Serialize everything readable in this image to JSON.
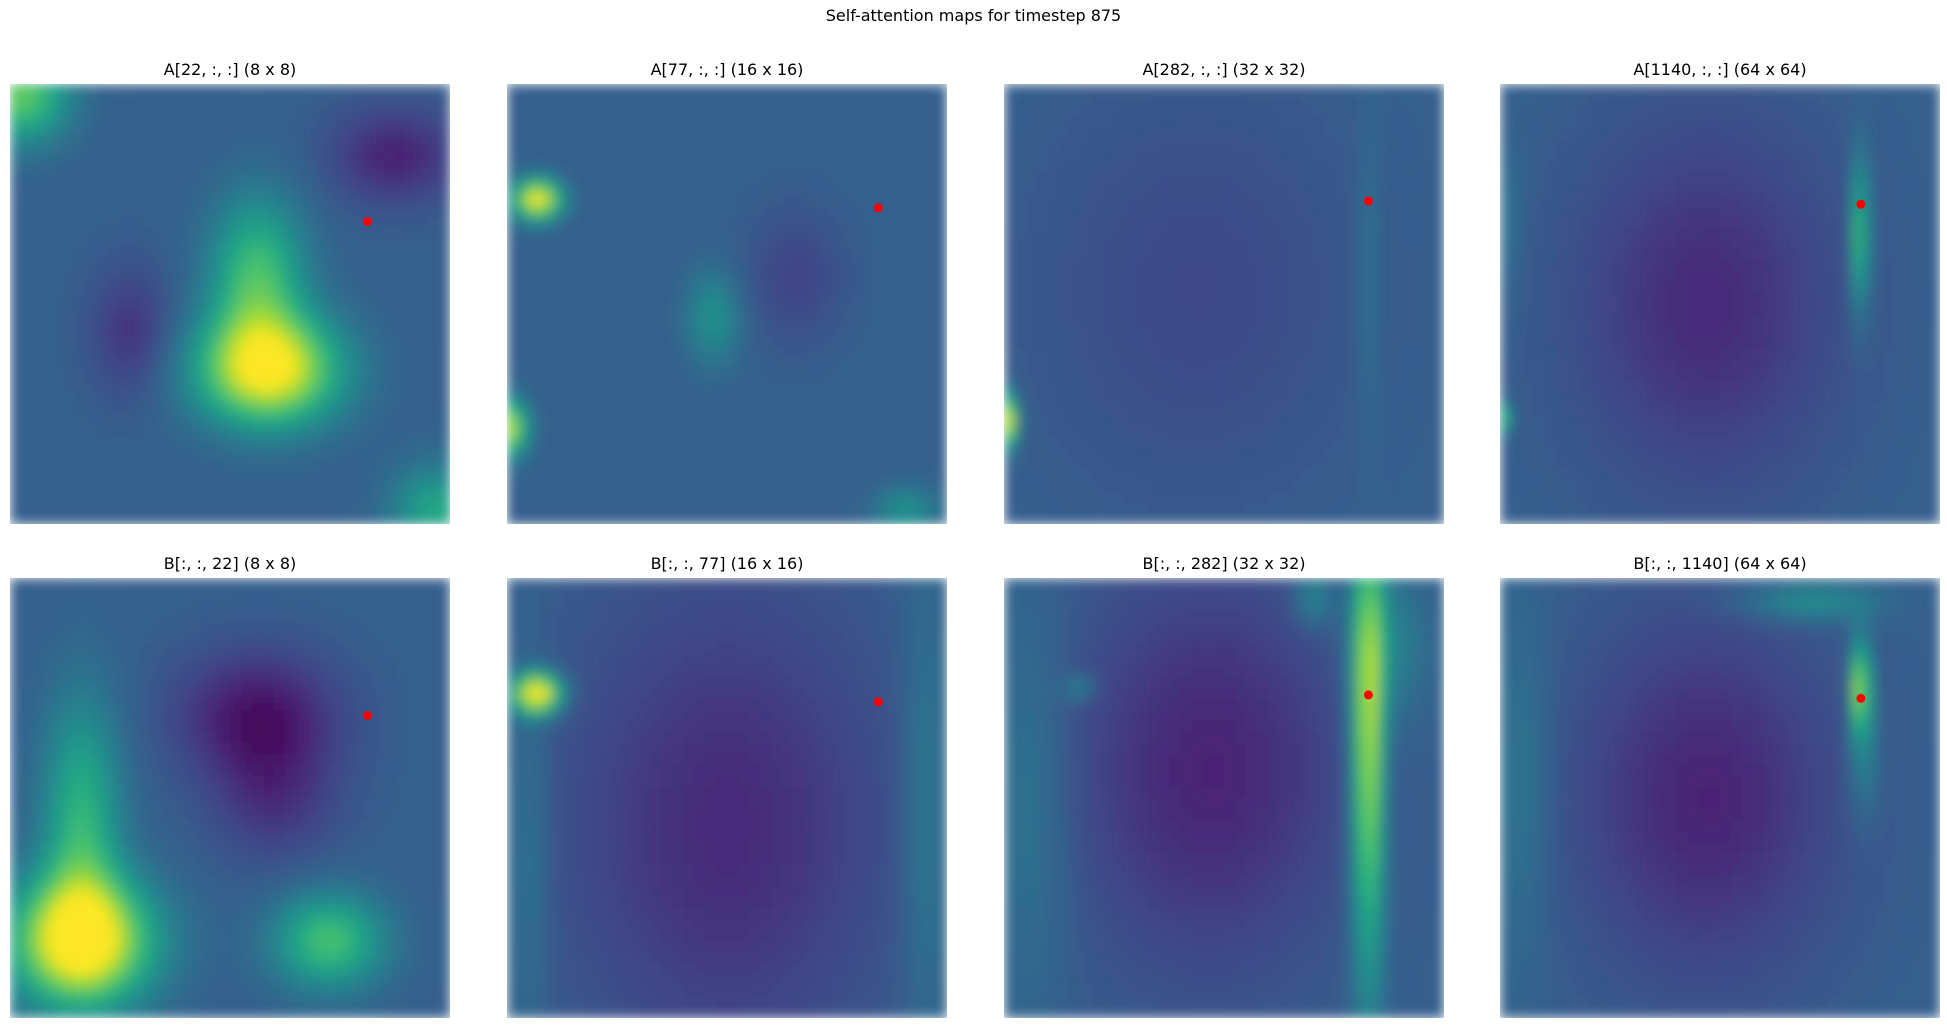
{
  "chart_data": {
    "type": "heatmap",
    "title": "Self-attention maps for timestep 875",
    "colormap": "viridis",
    "marker_color": "#ff0000",
    "panels": [
      {
        "row": 1,
        "col": 1,
        "title": "A[22, :, :] (8 x 8)",
        "grid_size": 8,
        "token_index": 22,
        "marker": {
          "x": 6.5,
          "y": 2.5
        },
        "blobs": [
          {
            "x": 4.7,
            "y": 5.2,
            "sx": 0.9,
            "sy": 0.7,
            "a": 0.7
          },
          {
            "x": 4.5,
            "y": 3.5,
            "sx": 0.6,
            "sy": 1.0,
            "a": 0.4
          },
          {
            "x": 0.2,
            "y": 0.2,
            "sx": 0.6,
            "sy": 0.6,
            "a": 0.45
          },
          {
            "x": 7.8,
            "y": 7.8,
            "sx": 0.6,
            "sy": 0.6,
            "a": 0.3
          },
          {
            "x": 7.0,
            "y": 1.3,
            "sx": 0.8,
            "sy": 0.6,
            "a": -0.2
          },
          {
            "x": 2.2,
            "y": 4.5,
            "sx": 0.5,
            "sy": 0.8,
            "a": -0.15
          }
        ]
      },
      {
        "row": 1,
        "col": 2,
        "title": "A[77, :, :] (16 x 16)",
        "grid_size": 16,
        "token_index": 77,
        "marker": {
          "x": 13.5,
          "y": 4.5
        },
        "blobs": [
          {
            "x": 1.1,
            "y": 4.2,
            "sx": 0.6,
            "sy": 0.5,
            "a": 0.7
          },
          {
            "x": 0.0,
            "y": 12.5,
            "sx": 0.5,
            "sy": 0.7,
            "a": 0.6
          },
          {
            "x": 7.5,
            "y": 8.5,
            "sx": 0.7,
            "sy": 1.2,
            "a": 0.2
          },
          {
            "x": 14.5,
            "y": 15.5,
            "sx": 0.8,
            "sy": 0.6,
            "a": 0.2
          },
          {
            "x": 10.5,
            "y": 7.0,
            "sx": 1.2,
            "sy": 1.6,
            "a": -0.1
          }
        ]
      },
      {
        "row": 1,
        "col": 3,
        "title": "A[282, :, :] (32 x 32)",
        "grid_size": 32,
        "token_index": 282,
        "marker": {
          "x": 26.5,
          "y": 8.5
        },
        "blobs": [
          {
            "x": 0.0,
            "y": 24.5,
            "sx": 0.6,
            "sy": 1.3,
            "a": 0.75
          },
          {
            "x": 26.5,
            "y": 14.0,
            "sx": 0.5,
            "sy": 8.0,
            "a": 0.1
          },
          {
            "x": 14.0,
            "y": 15.0,
            "sx": 8.0,
            "sy": 10.0,
            "a": -0.08
          }
        ]
      },
      {
        "row": 1,
        "col": 4,
        "title": "A[1140, :, :] (64 x 64)",
        "grid_size": 64,
        "token_index": 1140,
        "marker": {
          "x": 52.5,
          "y": 17.5
        },
        "blobs": [
          {
            "x": 52.5,
            "y": 22.0,
            "sx": 0.8,
            "sy": 8.0,
            "a": 0.45
          },
          {
            "x": 0.0,
            "y": 48.5,
            "sx": 0.7,
            "sy": 1.5,
            "a": 0.6
          },
          {
            "x": 1.0,
            "y": 20.0,
            "sx": 1.5,
            "sy": 8.0,
            "a": 0.08
          },
          {
            "x": 30.0,
            "y": 32.0,
            "sx": 13.0,
            "sy": 18.0,
            "a": -0.18
          }
        ]
      },
      {
        "row": 2,
        "col": 1,
        "title": "B[:, :, 22] (8 x 8)",
        "grid_size": 8,
        "token_index": 22,
        "marker": {
          "x": 6.5,
          "y": 2.5
        },
        "blobs": [
          {
            "x": 1.3,
            "y": 6.6,
            "sx": 0.9,
            "sy": 0.8,
            "a": 0.75
          },
          {
            "x": 1.3,
            "y": 4.5,
            "sx": 0.5,
            "sy": 1.6,
            "a": 0.35
          },
          {
            "x": 5.8,
            "y": 6.6,
            "sx": 0.7,
            "sy": 0.6,
            "a": 0.4
          },
          {
            "x": 4.5,
            "y": 2.5,
            "sx": 1.0,
            "sy": 0.8,
            "a": -0.25
          },
          {
            "x": 4.8,
            "y": 4.0,
            "sx": 0.8,
            "sy": 0.8,
            "a": -0.15
          }
        ]
      },
      {
        "row": 2,
        "col": 2,
        "title": "B[:, :, 77] (16 x 16)",
        "grid_size": 16,
        "token_index": 77,
        "marker": {
          "x": 13.5,
          "y": 4.5
        },
        "blobs": [
          {
            "x": 1.1,
            "y": 4.2,
            "sx": 0.6,
            "sy": 0.5,
            "a": 0.75
          },
          {
            "x": 0.8,
            "y": 10.0,
            "sx": 0.5,
            "sy": 5.0,
            "a": 0.1
          },
          {
            "x": 15.2,
            "y": 8.5,
            "sx": 0.6,
            "sy": 6.0,
            "a": 0.12
          },
          {
            "x": 8.0,
            "y": 9.0,
            "sx": 4.0,
            "sy": 6.0,
            "a": -0.18
          }
        ]
      },
      {
        "row": 2,
        "col": 3,
        "title": "B[:, :, 282] (32 x 32)",
        "grid_size": 32,
        "token_index": 282,
        "marker": {
          "x": 26.5,
          "y": 8.5
        },
        "blobs": [
          {
            "x": 26.5,
            "y": 12.0,
            "sx": 0.8,
            "sy": 12.0,
            "a": 0.6
          },
          {
            "x": 28.0,
            "y": 5.0,
            "sx": 2.0,
            "sy": 4.0,
            "a": 0.15
          },
          {
            "x": 5.5,
            "y": 8.0,
            "sx": 0.8,
            "sy": 0.6,
            "a": 0.18
          },
          {
            "x": 22.5,
            "y": 1.5,
            "sx": 1.0,
            "sy": 1.5,
            "a": 0.18
          },
          {
            "x": 2.0,
            "y": 16.0,
            "sx": 2.0,
            "sy": 10.0,
            "a": 0.1
          },
          {
            "x": 15.0,
            "y": 14.0,
            "sx": 7.0,
            "sy": 10.0,
            "a": -0.2
          }
        ]
      },
      {
        "row": 2,
        "col": 4,
        "title": "B[:, :, 1140] (64 x 64)",
        "grid_size": 64,
        "token_index": 1140,
        "marker": {
          "x": 52.5,
          "y": 17.5
        },
        "blobs": [
          {
            "x": 52.5,
            "y": 16.0,
            "sx": 0.9,
            "sy": 5.0,
            "a": 0.6
          },
          {
            "x": 45.0,
            "y": 3.5,
            "sx": 7.0,
            "sy": 2.0,
            "a": 0.2
          },
          {
            "x": 53.0,
            "y": 27.0,
            "sx": 1.5,
            "sy": 6.0,
            "a": 0.15
          },
          {
            "x": 3.0,
            "y": 30.0,
            "sx": 3.0,
            "sy": 18.0,
            "a": 0.1
          },
          {
            "x": 30.0,
            "y": 32.0,
            "sx": 13.0,
            "sy": 18.0,
            "a": -0.2
          }
        ]
      }
    ]
  }
}
